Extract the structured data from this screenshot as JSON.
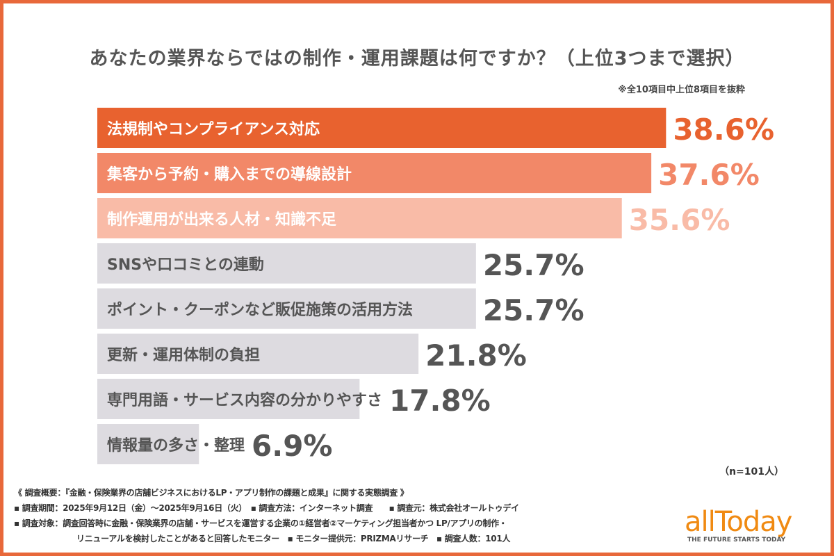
{
  "chart_data": {
    "type": "bar",
    "orientation": "horizontal",
    "title": "あなたの業界ならではの制作・運用課題は何ですか？（上位3つまで選択）",
    "note": "※全10項目中上位8項目を抜粋",
    "categories": [
      "法規制やコンプライアンス対応",
      "集客から予約・購入までの導線設計",
      "制作運用が出来る人材・知識不足",
      "SNSや口コミとの連動",
      "ポイント・クーポンなど販促施策の活用方法",
      "更新・運用体制の負担",
      "専門用語・サービス内容の分かりやすさ",
      "情報量の多さ・整理"
    ],
    "values": [
      38.6,
      37.6,
      35.6,
      25.7,
      25.7,
      21.8,
      17.8,
      6.9
    ],
    "value_labels": [
      "38.6%",
      "37.6%",
      "35.6%",
      "25.7%",
      "25.7%",
      "21.8%",
      "17.8%",
      "6.9%"
    ],
    "unit": "%",
    "bar_colors": [
      "#e8622f",
      "#f28868",
      "#f9bba7",
      "#dddbe0",
      "#dddbe0",
      "#dddbe0",
      "#dddbe0",
      "#dddbe0"
    ],
    "label_colors": [
      "#e8622f",
      "#f28868",
      "#f9bba7",
      "#555555",
      "#555555",
      "#555555",
      "#555555",
      "#555555"
    ],
    "sample": "（n=101人）"
  },
  "footer": {
    "lines": [
      "《 調査概要：『金融・保険業界の店舗ビジネスにおけるLP・アプリ制作の課題と成果』に関する実態調査 》",
      "▪ 調査期間：2025年9月12日（金）〜2025年9月16日（火）　▪ 調査方法：インターネット調査　　▪ 調査元：株式会社オールトゥデイ",
      "▪ 調査対象：調査回答時に金融・保険業界の店舗・サービスを運営する企業の①経営者②マーケティング担当者かつ LP/アプリの制作・",
      "リニューアルを検討したことがあると回答したモニター　▪ モニター提供元：PRIZMAリサーチ　▪ 調査人数：101人"
    ]
  },
  "logo": {
    "word": "allToday",
    "tagline": "THE FUTURE STARTS TODAY"
  },
  "colors": {
    "frame": "#e8683a",
    "logo": "#f08a12"
  }
}
